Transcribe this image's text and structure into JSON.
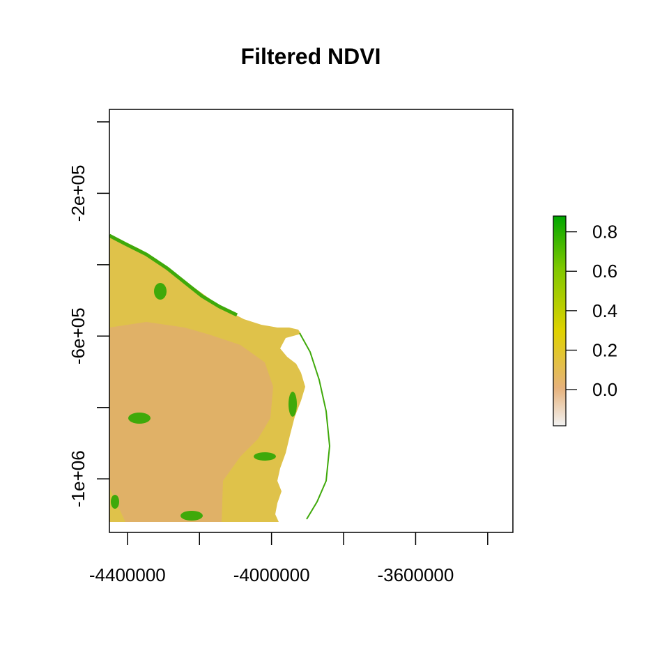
{
  "map": {
    "title": "Filtered NDVI",
    "x_axis": {
      "range": [
        -4450000,
        -3330000
      ],
      "ticks": [
        -4400000,
        -4200000,
        -4000000,
        -3800000,
        -3600000,
        -3400000
      ],
      "tick_labels": [
        {
          "value": -4400000,
          "label": "-4400000"
        },
        {
          "value": -4000000,
          "label": "-4000000"
        },
        {
          "value": -3600000,
          "label": "-3600000"
        }
      ]
    },
    "y_axis": {
      "range": [
        -1150000,
        35000
      ],
      "ticks": [
        0,
        -200000,
        -400000,
        -600000,
        -800000,
        -1000000
      ],
      "tick_labels": [
        {
          "value": -200000,
          "label": "-2e+05"
        },
        {
          "value": -600000,
          "label": "-6e+05"
        },
        {
          "value": -1000000,
          "label": "-1e+06"
        }
      ]
    },
    "raster_extent": {
      "x": [
        -4450000,
        -3840000
      ],
      "y": [
        -1150000,
        -350000
      ]
    }
  },
  "legend": {
    "range": [
      -0.18,
      0.88
    ],
    "ticks": [
      {
        "value": 0.8,
        "label": "0.8"
      },
      {
        "value": 0.6,
        "label": "0.6"
      },
      {
        "value": 0.4,
        "label": "0.4"
      },
      {
        "value": 0.2,
        "label": "0.2"
      },
      {
        "value": 0.0,
        "label": "0.0"
      }
    ],
    "colors": {
      "low": "#f2f2f2",
      "mid_low": "#e6b27c",
      "mid": "#e0d200",
      "mid_high": "#7fc800",
      "high": "#00a600"
    }
  },
  "colors": {
    "land_dominant": "#dfc24a",
    "land_dry": "#e1ae6c",
    "vegetation": "#3fa90a",
    "axis": "#000000"
  }
}
